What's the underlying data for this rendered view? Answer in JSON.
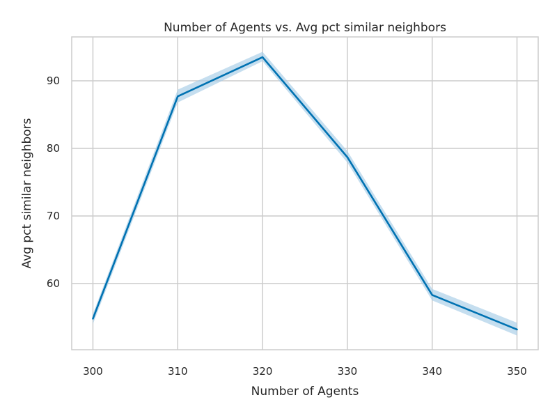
{
  "chart_data": {
    "type": "line",
    "title": "Number of Agents vs. Avg pct similar neighbors",
    "xlabel": "Number of Agents",
    "ylabel": "Avg pct similar neighbors",
    "x": [
      300,
      310,
      320,
      330,
      340,
      350
    ],
    "xticks": [
      "300",
      "310",
      "320",
      "330",
      "340",
      "350"
    ],
    "yticks": [
      "60",
      "70",
      "80",
      "90"
    ],
    "ytick_values": [
      60,
      70,
      80,
      90
    ],
    "xlim": [
      297.5,
      352.5
    ],
    "ylim": [
      50.2,
      96.5
    ],
    "series": [
      {
        "values": [
          54.8,
          87.7,
          93.5,
          78.7,
          58.3,
          53.2
        ],
        "ci_lower": [
          54.0,
          86.8,
          92.9,
          77.9,
          57.5,
          52.3
        ],
        "ci_upper": [
          55.5,
          88.7,
          94.3,
          79.6,
          59.2,
          54.2
        ],
        "color": "#0072b2",
        "band_color": "#a6cde6"
      }
    ],
    "grid": true,
    "grid_color": "#cccccc",
    "spine_color": "#cccccc"
  }
}
